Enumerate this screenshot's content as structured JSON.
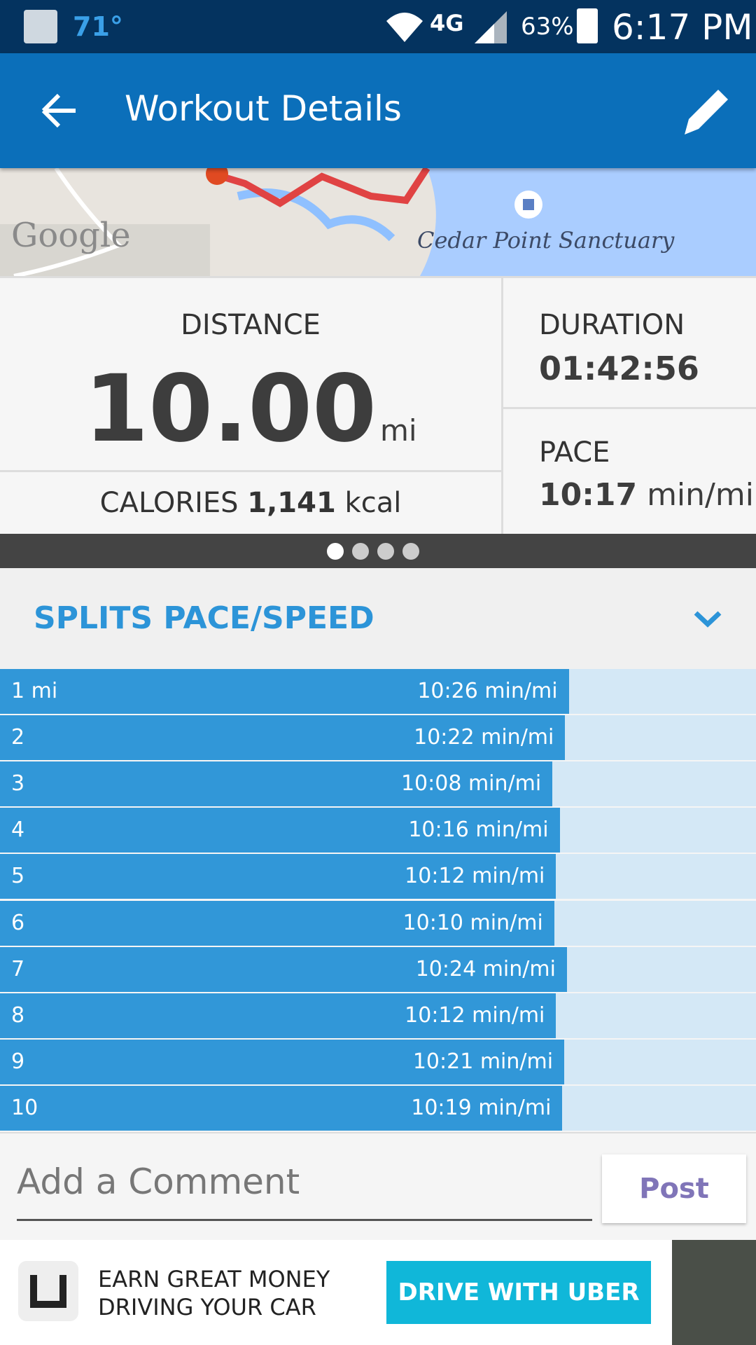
{
  "status_bar": {
    "temperature": "71°",
    "network": "4G",
    "battery": "63%",
    "time": "6:17 PM"
  },
  "app_bar": {
    "title": "Workout Details"
  },
  "map": {
    "watermark": "Google",
    "place": "Cedar Point Sanctuary"
  },
  "stats": {
    "distance_label": "DISTANCE",
    "distance_value": "10.00",
    "distance_unit": "mi",
    "calories_label": "CALORIES",
    "calories_value": "1,141",
    "calories_unit": "kcal",
    "duration_label": "DURATION",
    "duration_value": "01:42:56",
    "pace_label": "PACE",
    "pace_value": "10:17",
    "pace_unit": "min/mi"
  },
  "splits": {
    "title": "SPLITS PACE/SPEED",
    "rows": [
      {
        "label": "1 mi",
        "pace": "10:26 min/mi"
      },
      {
        "label": "2",
        "pace": "10:22 min/mi"
      },
      {
        "label": "3",
        "pace": "10:08 min/mi"
      },
      {
        "label": "4",
        "pace": "10:16 min/mi"
      },
      {
        "label": "5",
        "pace": "10:12 min/mi"
      },
      {
        "label": "6",
        "pace": "10:10 min/mi"
      },
      {
        "label": "7",
        "pace": "10:24 min/mi"
      },
      {
        "label": "8",
        "pace": "10:12 min/mi"
      },
      {
        "label": "9",
        "pace": "10:21 min/mi"
      },
      {
        "label": "10",
        "pace": "10:19 min/mi"
      }
    ]
  },
  "comment": {
    "placeholder": "Add a Comment",
    "button": "Post"
  },
  "ad": {
    "line1": "EARN GREAT MONEY",
    "line2": "DRIVING YOUR CAR",
    "button": "DRIVE WITH UBER"
  }
}
